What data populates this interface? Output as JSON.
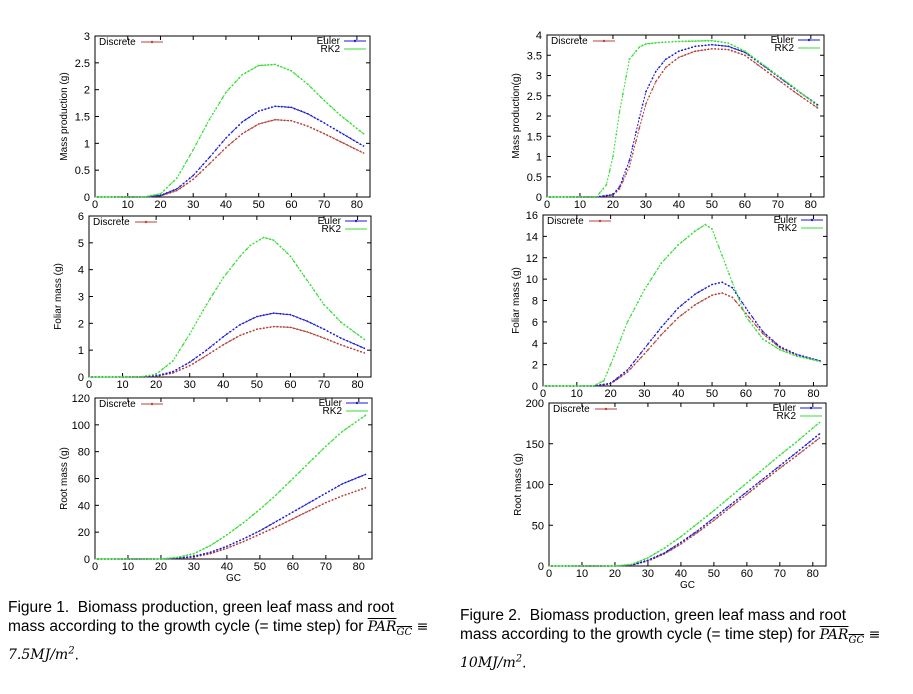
{
  "colors": {
    "discrete": "#b5403a",
    "euler": "#1a1ad6",
    "rk2": "#33dd33",
    "axis": "#000000"
  },
  "chart_data": [
    {
      "type": "line",
      "figure": 1,
      "ylabel": "Mass production (g)",
      "xlabel": "",
      "xlim": [
        0,
        84
      ],
      "ylim": [
        0,
        3
      ],
      "xticks": [
        0,
        10,
        20,
        30,
        40,
        50,
        60,
        70,
        80
      ],
      "yticks": [
        0,
        0.5,
        1,
        1.5,
        2,
        2.5,
        3
      ],
      "ytick_labels": [
        "0",
        "0.5",
        "1",
        "1.5",
        "2",
        "2.5",
        "3"
      ],
      "legend": {
        "discrete": "Discrete",
        "euler": "Euler",
        "rk2": "RK2"
      },
      "series": [
        {
          "name": "Discrete",
          "key": "discrete",
          "x": [
            0,
            15,
            20,
            25,
            30,
            35,
            40,
            45,
            50,
            55,
            60,
            65,
            70,
            75,
            82
          ],
          "y": [
            0,
            0,
            0.02,
            0.12,
            0.33,
            0.62,
            0.92,
            1.18,
            1.36,
            1.44,
            1.42,
            1.32,
            1.18,
            1.03,
            0.82
          ]
        },
        {
          "name": "Euler",
          "key": "euler",
          "x": [
            0,
            15,
            20,
            25,
            30,
            35,
            40,
            45,
            50,
            55,
            60,
            65,
            70,
            75,
            82
          ],
          "y": [
            0,
            0,
            0.03,
            0.15,
            0.4,
            0.74,
            1.1,
            1.4,
            1.6,
            1.69,
            1.67,
            1.55,
            1.38,
            1.2,
            0.95
          ]
        },
        {
          "name": "RK2",
          "key": "rk2",
          "x": [
            0,
            15,
            20,
            25,
            30,
            35,
            40,
            45,
            50,
            55,
            60,
            65,
            70,
            75,
            82
          ],
          "y": [
            0,
            0,
            0.06,
            0.35,
            0.88,
            1.45,
            1.95,
            2.28,
            2.45,
            2.47,
            2.35,
            2.1,
            1.8,
            1.52,
            1.18
          ]
        }
      ]
    },
    {
      "type": "line",
      "figure": 1,
      "ylabel": "Foliar mass (g)",
      "xlabel": "",
      "xlim": [
        0,
        84
      ],
      "ylim": [
        0,
        6
      ],
      "xticks": [
        0,
        10,
        20,
        30,
        40,
        50,
        60,
        70,
        80
      ],
      "yticks": [
        0,
        1,
        2,
        3,
        4,
        5,
        6
      ],
      "ytick_labels": [
        "0",
        "1",
        "2",
        "3",
        "4",
        "5",
        "6"
      ],
      "legend": {
        "discrete": "Discrete",
        "euler": "Euler",
        "rk2": "RK2"
      },
      "series": [
        {
          "name": "Discrete",
          "key": "discrete",
          "x": [
            0,
            15,
            20,
            25,
            30,
            35,
            40,
            45,
            50,
            55,
            60,
            65,
            70,
            75,
            82
          ],
          "y": [
            0,
            0,
            0.03,
            0.15,
            0.42,
            0.8,
            1.2,
            1.55,
            1.78,
            1.88,
            1.85,
            1.68,
            1.45,
            1.2,
            0.9
          ]
        },
        {
          "name": "Euler",
          "key": "euler",
          "x": [
            0,
            15,
            20,
            25,
            30,
            35,
            40,
            45,
            50,
            55,
            60,
            65,
            70,
            75,
            82
          ],
          "y": [
            0,
            0,
            0.04,
            0.2,
            0.55,
            1.0,
            1.5,
            1.95,
            2.25,
            2.38,
            2.32,
            2.08,
            1.78,
            1.45,
            1.07
          ]
        },
        {
          "name": "RK2",
          "key": "rk2",
          "x": [
            0,
            15,
            20,
            25,
            30,
            35,
            40,
            45,
            48,
            52,
            55,
            60,
            65,
            70,
            75,
            82
          ],
          "y": [
            0,
            0,
            0.1,
            0.6,
            1.6,
            2.7,
            3.7,
            4.5,
            4.9,
            5.2,
            5.1,
            4.5,
            3.6,
            2.7,
            2.05,
            1.4
          ]
        }
      ]
    },
    {
      "type": "line",
      "figure": 1,
      "ylabel": "Root mass (g)",
      "xlabel": "GC",
      "xlim": [
        0,
        84
      ],
      "ylim": [
        0,
        120
      ],
      "xticks": [
        0,
        10,
        20,
        30,
        40,
        50,
        60,
        70,
        80
      ],
      "yticks": [
        0,
        20,
        40,
        60,
        80,
        100,
        120
      ],
      "ytick_labels": [
        "0",
        "20",
        "40",
        "60",
        "80",
        "100",
        "120"
      ],
      "legend": {
        "discrete": "Discrete",
        "euler": "Euler",
        "rk2": "RK2"
      },
      "series": [
        {
          "name": "Discrete",
          "key": "discrete",
          "x": [
            0,
            20,
            25,
            30,
            35,
            40,
            45,
            50,
            55,
            60,
            65,
            70,
            75,
            82
          ],
          "y": [
            0,
            0,
            0.5,
            1.5,
            4,
            8,
            13,
            18.5,
            24,
            30,
            36,
            42,
            47,
            53
          ]
        },
        {
          "name": "Euler",
          "key": "euler",
          "x": [
            0,
            20,
            25,
            30,
            35,
            40,
            45,
            50,
            55,
            60,
            65,
            70,
            75,
            82
          ],
          "y": [
            0,
            0,
            0.6,
            2,
            5,
            9.5,
            15,
            21,
            28,
            35,
            42,
            49,
            56,
            63
          ]
        },
        {
          "name": "RK2",
          "key": "rk2",
          "x": [
            0,
            20,
            25,
            30,
            35,
            40,
            45,
            50,
            55,
            60,
            65,
            70,
            75,
            82
          ],
          "y": [
            0,
            0,
            1.2,
            4,
            10,
            18,
            27,
            37,
            48,
            60,
            72,
            84,
            95,
            107
          ]
        }
      ]
    },
    {
      "type": "line",
      "figure": 2,
      "ylabel": "Mass production(g)",
      "xlabel": "",
      "xlim": [
        0,
        84
      ],
      "ylim": [
        0,
        4
      ],
      "xticks": [
        0,
        10,
        20,
        30,
        40,
        50,
        60,
        70,
        80
      ],
      "yticks": [
        0,
        0.5,
        1,
        1.5,
        2,
        2.5,
        3,
        3.5,
        4
      ],
      "ytick_labels": [
        "0",
        "0.5",
        "1",
        "1.5",
        "2",
        "2.5",
        "3",
        "3.5",
        "4"
      ],
      "legend": {
        "discrete": "Discrete",
        "euler": "Euler",
        "rk2": "RK2"
      },
      "series": [
        {
          "name": "Discrete",
          "key": "discrete",
          "x": [
            0,
            15,
            20,
            22,
            25,
            28,
            30,
            33,
            36,
            40,
            45,
            50,
            55,
            60,
            65,
            70,
            75,
            82
          ],
          "y": [
            0,
            0,
            0.05,
            0.2,
            0.75,
            1.7,
            2.3,
            2.85,
            3.2,
            3.45,
            3.6,
            3.66,
            3.64,
            3.5,
            3.2,
            2.9,
            2.6,
            2.2
          ]
        },
        {
          "name": "Euler",
          "key": "euler",
          "x": [
            0,
            15,
            20,
            22,
            25,
            28,
            30,
            33,
            36,
            40,
            45,
            50,
            55,
            60,
            65,
            70,
            75,
            82
          ],
          "y": [
            0,
            0,
            0.06,
            0.25,
            0.9,
            1.95,
            2.6,
            3.1,
            3.4,
            3.6,
            3.72,
            3.76,
            3.72,
            3.57,
            3.28,
            2.98,
            2.68,
            2.28
          ]
        },
        {
          "name": "RK2",
          "key": "rk2",
          "x": [
            0,
            15,
            18,
            20,
            22,
            25,
            28,
            30,
            35,
            40,
            50,
            55,
            60,
            65,
            70,
            75,
            82
          ],
          "y": [
            0,
            0,
            0.3,
            1.0,
            2.1,
            3.4,
            3.7,
            3.78,
            3.82,
            3.84,
            3.86,
            3.8,
            3.6,
            3.3,
            3.0,
            2.7,
            2.25
          ]
        }
      ]
    },
    {
      "type": "line",
      "figure": 2,
      "ylabel": "Foliar mass (g)",
      "xlabel": "",
      "xlim": [
        0,
        84
      ],
      "ylim": [
        0,
        16
      ],
      "xticks": [
        0,
        10,
        20,
        30,
        40,
        50,
        60,
        70,
        80
      ],
      "yticks": [
        0,
        2,
        4,
        6,
        8,
        10,
        12,
        14,
        16
      ],
      "ytick_labels": [
        "0",
        "2",
        "4",
        "6",
        "8",
        "10",
        "12",
        "14",
        "16"
      ],
      "legend": {
        "discrete": "Discrete",
        "euler": "Euler",
        "rk2": "RK2"
      },
      "series": [
        {
          "name": "Discrete",
          "key": "discrete",
          "x": [
            0,
            15,
            20,
            25,
            30,
            35,
            40,
            45,
            50,
            53,
            56,
            60,
            65,
            70,
            75,
            82
          ],
          "y": [
            0,
            0,
            0.2,
            1.3,
            3.0,
            4.8,
            6.4,
            7.6,
            8.5,
            8.7,
            8.3,
            6.8,
            4.9,
            3.6,
            2.9,
            2.3
          ]
        },
        {
          "name": "Euler",
          "key": "euler",
          "x": [
            0,
            15,
            20,
            25,
            30,
            35,
            40,
            45,
            50,
            53,
            56,
            60,
            65,
            70,
            75,
            82
          ],
          "y": [
            0,
            0,
            0.25,
            1.5,
            3.5,
            5.5,
            7.3,
            8.6,
            9.5,
            9.7,
            9.2,
            7.3,
            5.1,
            3.7,
            2.95,
            2.35
          ]
        },
        {
          "name": "RK2",
          "key": "rk2",
          "x": [
            0,
            15,
            18,
            20,
            25,
            30,
            35,
            40,
            45,
            48,
            50,
            55,
            60,
            65,
            70,
            75,
            82
          ],
          "y": [
            0,
            0,
            0.5,
            2.0,
            6.0,
            9.0,
            11.5,
            13.2,
            14.5,
            15.1,
            14.7,
            10.5,
            6.5,
            4.4,
            3.4,
            2.8,
            2.3
          ]
        }
      ]
    },
    {
      "type": "line",
      "figure": 2,
      "ylabel": "Root mass (g)",
      "xlabel": "GC",
      "xlim": [
        0,
        84
      ],
      "ylim": [
        0,
        200
      ],
      "xticks": [
        0,
        10,
        20,
        30,
        40,
        50,
        60,
        70,
        80
      ],
      "yticks": [
        0,
        50,
        100,
        150,
        200
      ],
      "ytick_labels": [
        "0",
        "50",
        "100",
        "150",
        "200"
      ],
      "legend": {
        "discrete": "Discrete",
        "euler": "Euler",
        "rk2": "RK2"
      },
      "series": [
        {
          "name": "Discrete",
          "key": "discrete",
          "x": [
            0,
            20,
            25,
            30,
            35,
            40,
            45,
            50,
            55,
            60,
            65,
            70,
            75,
            82
          ],
          "y": [
            0,
            0,
            1,
            6,
            15,
            27,
            41,
            56,
            72,
            88,
            104,
            120,
            135,
            157
          ]
        },
        {
          "name": "Euler",
          "key": "euler",
          "x": [
            0,
            20,
            25,
            30,
            35,
            40,
            45,
            50,
            55,
            60,
            65,
            70,
            75,
            82
          ],
          "y": [
            0,
            0,
            1.2,
            7,
            16,
            29,
            43,
            59,
            75,
            91,
            107,
            123,
            139,
            162
          ]
        },
        {
          "name": "RK2",
          "key": "rk2",
          "x": [
            0,
            20,
            25,
            30,
            35,
            40,
            45,
            50,
            55,
            60,
            65,
            70,
            75,
            82
          ],
          "y": [
            0,
            0,
            2,
            10,
            22,
            36,
            52,
            68,
            85,
            102,
            119,
            136,
            152,
            176
          ]
        }
      ]
    }
  ],
  "captions": {
    "fig1": {
      "prefix": "Figure 1.",
      "text": "Biomass production, green leaf mass and root mass according to the growth cycle (= time step) for",
      "par": "PAR",
      "sub": "GC",
      "equiv": "≡ 7.5MJ/m",
      "sup": "2",
      "end": "."
    },
    "fig2": {
      "prefix": "Figure 2.",
      "text": "Biomass production, green leaf mass and root mass according to the growth cycle (= time step) for",
      "par": "PAR",
      "sub": "GC",
      "equiv": "≡ 10MJ/m",
      "sup": "2",
      "end": "."
    }
  }
}
